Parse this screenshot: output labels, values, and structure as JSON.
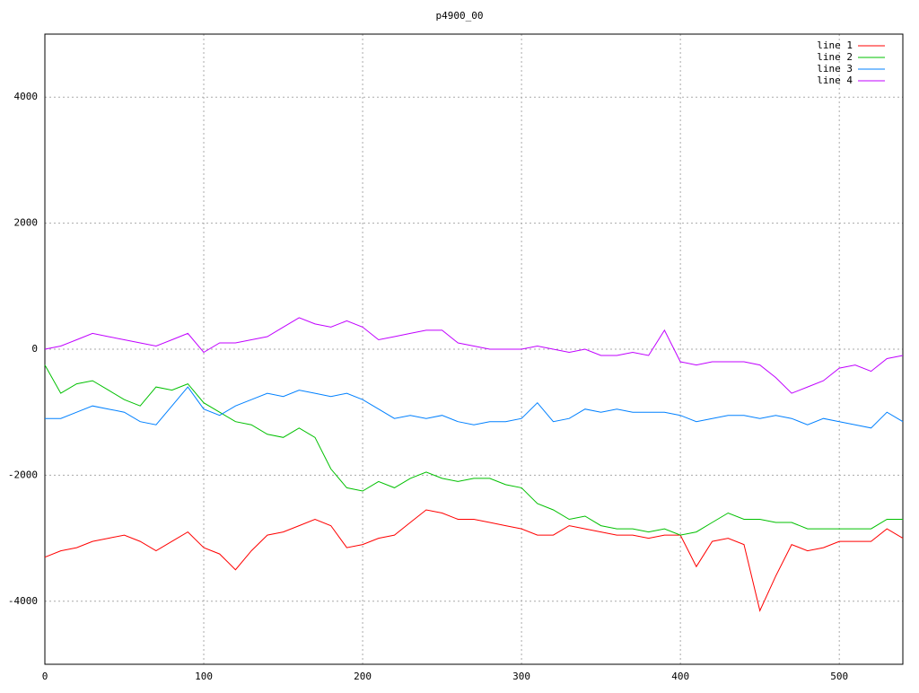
{
  "chart_data": {
    "type": "line",
    "title": "p4900_00",
    "x": [
      0,
      10,
      20,
      30,
      40,
      50,
      60,
      70,
      80,
      90,
      100,
      110,
      120,
      130,
      140,
      150,
      160,
      170,
      180,
      190,
      200,
      210,
      220,
      230,
      240,
      250,
      260,
      270,
      280,
      290,
      300,
      310,
      320,
      330,
      340,
      350,
      360,
      370,
      380,
      390,
      400,
      410,
      420,
      430,
      440,
      450,
      460,
      470,
      480,
      490,
      500,
      510,
      520,
      530,
      540
    ],
    "series": [
      {
        "name": "line 1",
        "color": "#ff0000",
        "values": [
          -3300,
          -3200,
          -3150,
          -3050,
          -3000,
          -2950,
          -3050,
          -3200,
          -3050,
          -2900,
          -3150,
          -3250,
          -3500,
          -3200,
          -2950,
          -2900,
          -2800,
          -2700,
          -2800,
          -3150,
          -3100,
          -3000,
          -2950,
          -2750,
          -2550,
          -2600,
          -2700,
          -2700,
          -2750,
          -2800,
          -2850,
          -2950,
          -2950,
          -2800,
          -2850,
          -2900,
          -2950,
          -2950,
          -3000,
          -2950,
          -2950,
          -3450,
          -3050,
          -3000,
          -3100,
          -4150,
          -3600,
          -3100,
          -3200,
          -3150,
          -3050,
          -3050,
          -3050,
          -2850,
          -3000
        ]
      },
      {
        "name": "line 2",
        "color": "#00c000",
        "values": [
          -250,
          -700,
          -550,
          -500,
          -650,
          -800,
          -900,
          -600,
          -650,
          -550,
          -850,
          -1000,
          -1150,
          -1200,
          -1350,
          -1400,
          -1250,
          -1400,
          -1900,
          -2200,
          -2250,
          -2100,
          -2200,
          -2050,
          -1950,
          -2050,
          -2100,
          -2050,
          -2050,
          -2150,
          -2200,
          -2450,
          -2550,
          -2700,
          -2650,
          -2800,
          -2850,
          -2850,
          -2900,
          -2850,
          -2950,
          -2900,
          -2750,
          -2600,
          -2700,
          -2700,
          -2750,
          -2750,
          -2850,
          -2850,
          -2850,
          -2850,
          -2850,
          -2700,
          -2700
        ]
      },
      {
        "name": "line 3",
        "color": "#0080ff",
        "values": [
          -1100,
          -1100,
          -1000,
          -900,
          -950,
          -1000,
          -1150,
          -1200,
          -900,
          -600,
          -950,
          -1050,
          -900,
          -800,
          -700,
          -750,
          -650,
          -700,
          -750,
          -700,
          -800,
          -950,
          -1100,
          -1050,
          -1100,
          -1050,
          -1150,
          -1200,
          -1150,
          -1150,
          -1100,
          -850,
          -1150,
          -1100,
          -950,
          -1000,
          -950,
          -1000,
          -1000,
          -1000,
          -1050,
          -1150,
          -1100,
          -1050,
          -1050,
          -1100,
          -1050,
          -1100,
          -1200,
          -1100,
          -1150,
          -1200,
          -1250,
          -1000,
          -1150
        ]
      },
      {
        "name": "line 4",
        "color": "#c000ff",
        "values": [
          0,
          50,
          150,
          250,
          200,
          150,
          100,
          50,
          150,
          250,
          -50,
          100,
          100,
          150,
          200,
          350,
          500,
          400,
          350,
          450,
          350,
          150,
          200,
          250,
          300,
          300,
          100,
          50,
          0,
          0,
          0,
          50,
          0,
          -50,
          0,
          -100,
          -100,
          -50,
          -100,
          300,
          -200,
          -250,
          -200,
          -200,
          -200,
          -250,
          -450,
          -700,
          -600,
          -500,
          -300,
          -250,
          -350,
          -150,
          -100
        ]
      }
    ],
    "xlim": [
      0,
      540
    ],
    "ylim": [
      -5000,
      5000
    ],
    "xticks": [
      0,
      100,
      200,
      300,
      400,
      500
    ],
    "yticks": [
      -4000,
      -2000,
      0,
      2000,
      4000
    ],
    "grid": true,
    "legend": "top-right"
  }
}
